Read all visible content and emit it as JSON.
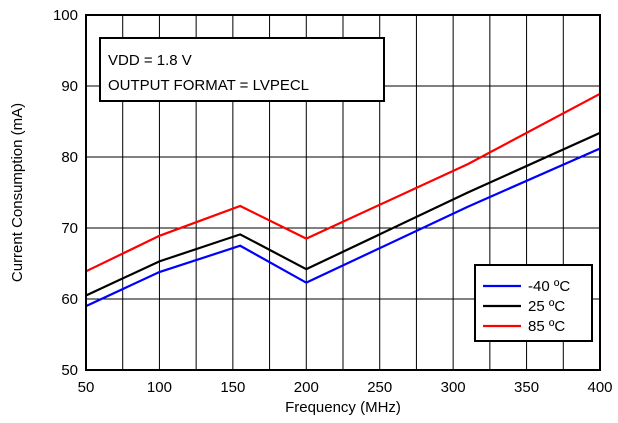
{
  "chart_data": {
    "type": "line",
    "title": "",
    "xlabel": "Frequency (MHz)",
    "ylabel": "Current Consumption (mA)",
    "xlim": [
      50,
      400
    ],
    "ylim": [
      50,
      100
    ],
    "x_ticks": [
      50,
      100,
      150,
      200,
      250,
      300,
      350,
      400
    ],
    "y_ticks": [
      50,
      60,
      70,
      80,
      90,
      100
    ],
    "x_tick_labels": [
      "50",
      "100",
      "150",
      "200",
      "250",
      "300",
      "350",
      "400"
    ],
    "y_tick_labels": [
      "50",
      "60",
      "70",
      "80",
      "90",
      "100"
    ],
    "x_minor_step": 25,
    "grid": true,
    "annotation": {
      "lines": [
        "VDD = 1.8 V",
        "OUTPUT FORMAT = LVPECL"
      ]
    },
    "legend_position": "bottom-right",
    "series": [
      {
        "name": "-40 ºC",
        "color": "#0000ff",
        "x": [
          50,
          100,
          155,
          200,
          310,
          400
        ],
        "y": [
          59.0,
          63.8,
          67.5,
          62.3,
          73.0,
          81.2
        ]
      },
      {
        "name": "25 ºC",
        "color": "#000000",
        "x": [
          50,
          100,
          155,
          200,
          310,
          400
        ],
        "y": [
          60.5,
          65.3,
          69.1,
          64.2,
          75.0,
          83.4
        ]
      },
      {
        "name": "85 ºC",
        "color": "#ff0000",
        "x": [
          50,
          100,
          155,
          200,
          310,
          400
        ],
        "y": [
          63.9,
          68.9,
          73.1,
          68.5,
          79.0,
          88.9
        ]
      }
    ]
  }
}
